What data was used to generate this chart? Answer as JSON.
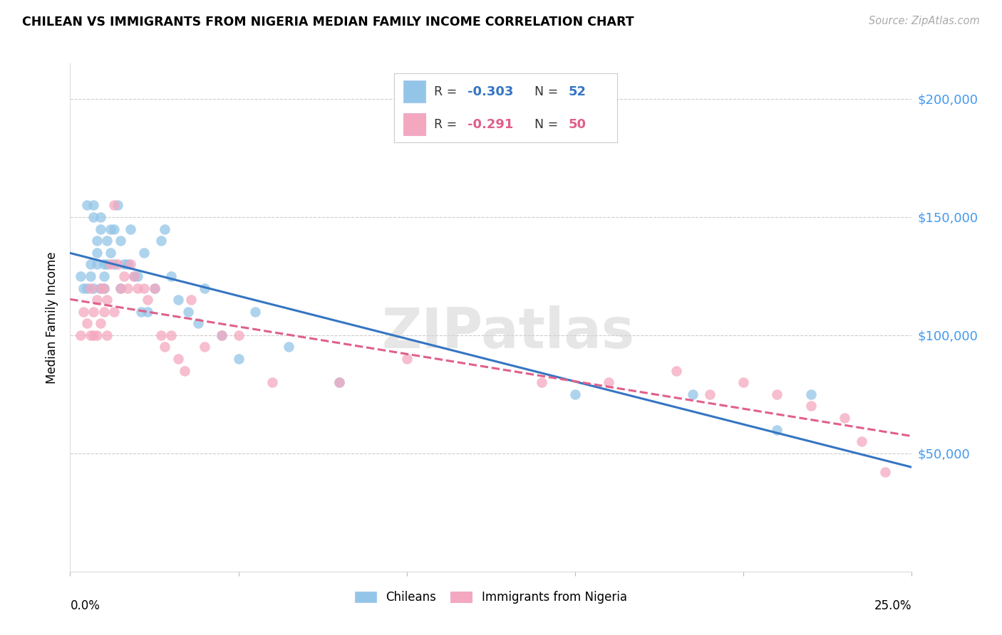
{
  "title": "CHILEAN VS IMMIGRANTS FROM NIGERIA MEDIAN FAMILY INCOME CORRELATION CHART",
  "source": "Source: ZipAtlas.com",
  "ylabel": "Median Family Income",
  "yticks": [
    0,
    50000,
    100000,
    150000,
    200000
  ],
  "ytick_labels": [
    "",
    "$50,000",
    "$100,000",
    "$150,000",
    "$200,000"
  ],
  "ylim": [
    0,
    215000
  ],
  "xlim": [
    0.0,
    0.25
  ],
  "legend_label_blue": "Chileans",
  "legend_label_pink": "Immigrants from Nigeria",
  "blue_color": "#93c5e8",
  "pink_color": "#f4a8bf",
  "blue_line_color": "#3575c2",
  "pink_line_color": "#e0608a",
  "watermark": "ZIPatlas",
  "blue_r": "-0.303",
  "blue_n": "52",
  "pink_r": "-0.291",
  "pink_n": "50",
  "blue_scatter_x": [
    0.003,
    0.004,
    0.005,
    0.005,
    0.006,
    0.006,
    0.007,
    0.007,
    0.007,
    0.008,
    0.008,
    0.008,
    0.009,
    0.009,
    0.009,
    0.01,
    0.01,
    0.01,
    0.011,
    0.011,
    0.012,
    0.012,
    0.013,
    0.013,
    0.014,
    0.015,
    0.015,
    0.016,
    0.017,
    0.018,
    0.019,
    0.02,
    0.021,
    0.022,
    0.023,
    0.025,
    0.027,
    0.028,
    0.03,
    0.032,
    0.035,
    0.038,
    0.04,
    0.045,
    0.05,
    0.055,
    0.065,
    0.08,
    0.15,
    0.185,
    0.21,
    0.22
  ],
  "blue_scatter_y": [
    125000,
    120000,
    155000,
    120000,
    130000,
    125000,
    155000,
    150000,
    120000,
    140000,
    135000,
    130000,
    150000,
    145000,
    120000,
    130000,
    125000,
    120000,
    140000,
    130000,
    145000,
    135000,
    145000,
    130000,
    155000,
    140000,
    120000,
    130000,
    130000,
    145000,
    125000,
    125000,
    110000,
    135000,
    110000,
    120000,
    140000,
    145000,
    125000,
    115000,
    110000,
    105000,
    120000,
    100000,
    90000,
    110000,
    95000,
    80000,
    75000,
    75000,
    60000,
    75000
  ],
  "pink_scatter_x": [
    0.003,
    0.004,
    0.005,
    0.006,
    0.006,
    0.007,
    0.007,
    0.008,
    0.008,
    0.009,
    0.009,
    0.01,
    0.01,
    0.011,
    0.011,
    0.012,
    0.013,
    0.013,
    0.014,
    0.015,
    0.016,
    0.017,
    0.018,
    0.019,
    0.02,
    0.022,
    0.023,
    0.025,
    0.027,
    0.028,
    0.03,
    0.032,
    0.034,
    0.036,
    0.04,
    0.045,
    0.05,
    0.06,
    0.08,
    0.1,
    0.14,
    0.16,
    0.18,
    0.19,
    0.2,
    0.21,
    0.22,
    0.23,
    0.235,
    0.242
  ],
  "pink_scatter_y": [
    100000,
    110000,
    105000,
    120000,
    100000,
    110000,
    100000,
    115000,
    100000,
    120000,
    105000,
    120000,
    110000,
    115000,
    100000,
    130000,
    155000,
    110000,
    130000,
    120000,
    125000,
    120000,
    130000,
    125000,
    120000,
    120000,
    115000,
    120000,
    100000,
    95000,
    100000,
    90000,
    85000,
    115000,
    95000,
    100000,
    100000,
    80000,
    80000,
    90000,
    80000,
    80000,
    85000,
    75000,
    80000,
    75000,
    70000,
    65000,
    55000,
    42000
  ]
}
